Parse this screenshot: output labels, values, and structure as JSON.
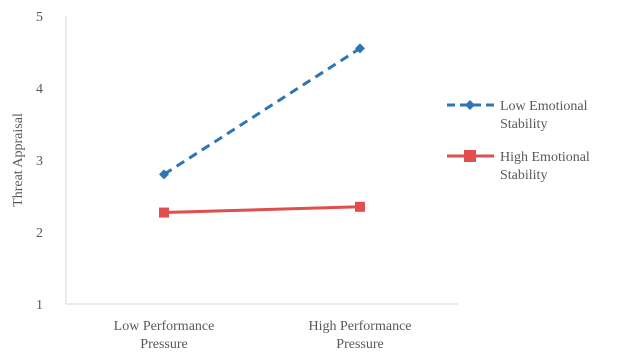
{
  "chart_data": {
    "type": "line",
    "title": "",
    "xlabel": "",
    "ylabel": "Threat Appraisal",
    "ylim": [
      1,
      5
    ],
    "yticks": [
      1,
      2,
      3,
      4,
      5
    ],
    "categories": [
      [
        "Low Performance",
        "Pressure"
      ],
      [
        "High Performance",
        "Pressure"
      ]
    ],
    "grid": false,
    "legend": "right",
    "series": [
      {
        "name": [
          "Low Emotional",
          "Stability"
        ],
        "values": [
          2.8,
          4.55
        ],
        "color": "#2E75B6",
        "line_style": "dashed",
        "marker": "diamond"
      },
      {
        "name": [
          "High Emotional",
          "Stability"
        ],
        "values": [
          2.27,
          2.35
        ],
        "color": "#E04E4E",
        "line_style": "solid",
        "marker": "square"
      }
    ]
  }
}
